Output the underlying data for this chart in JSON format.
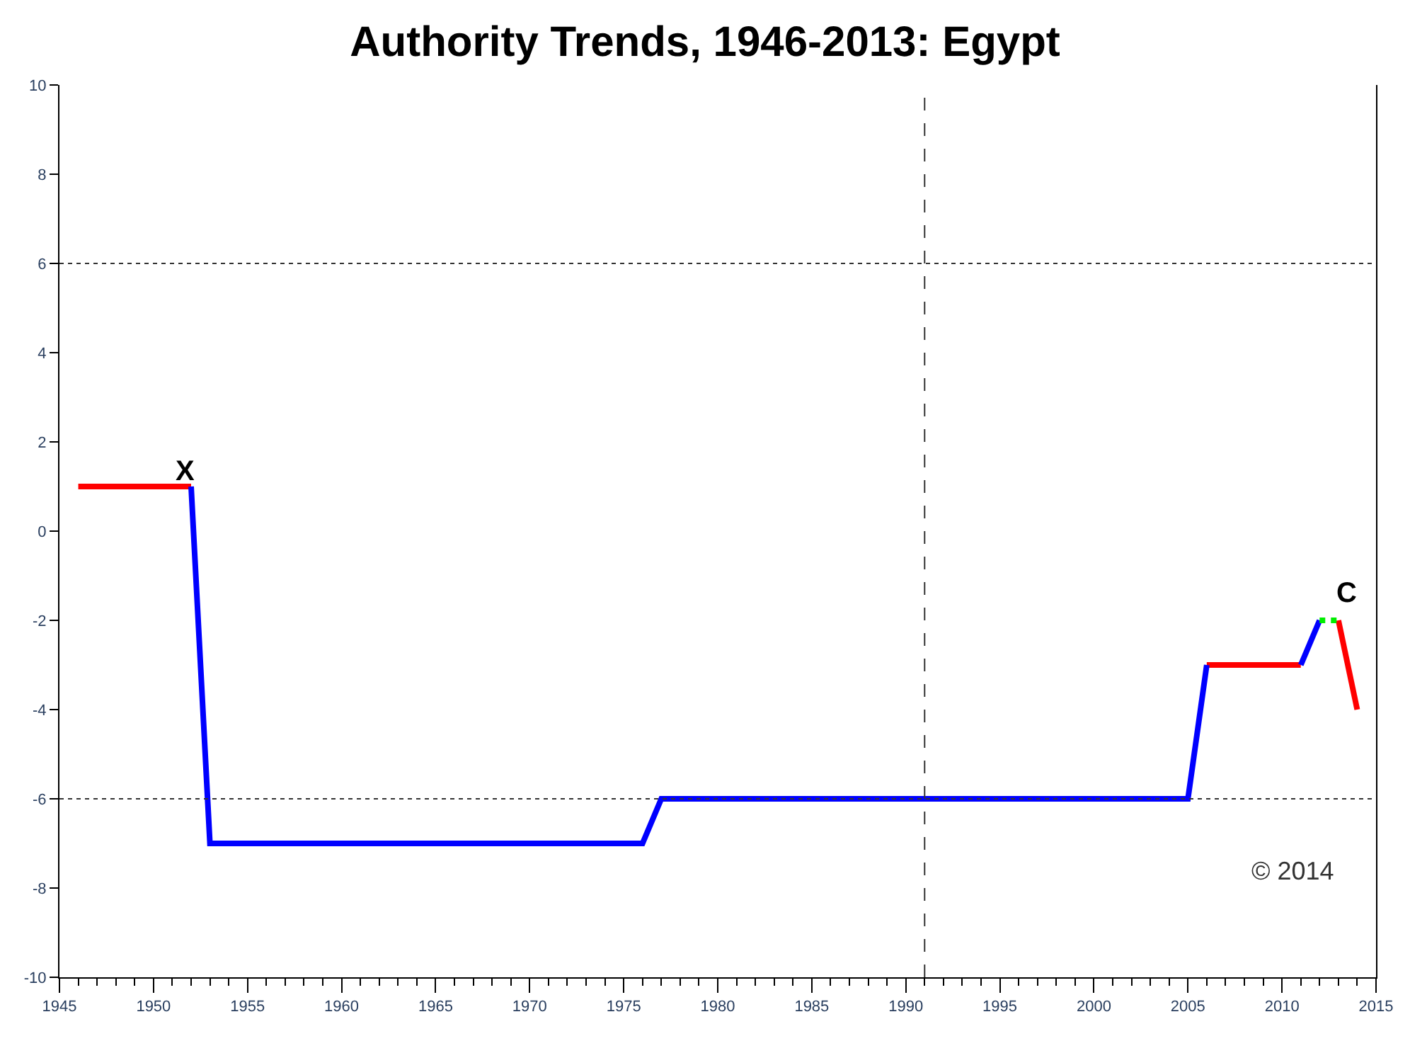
{
  "chart_data": {
    "type": "line",
    "title": "Authority Trends, 1946-2013: Egypt",
    "series": [
      {
        "color": "#ff0000",
        "x": [
          1946,
          1952,
          null,
          2006,
          2011,
          null,
          2013,
          2014
        ],
        "values": [
          1,
          1,
          null,
          -3,
          -3,
          null,
          -2,
          -4
        ]
      },
      {
        "color": "#0000ff",
        "x": [
          1952,
          1953,
          1976,
          1977,
          2005,
          2006,
          null,
          2011,
          2012
        ],
        "values": [
          1,
          -7,
          -7,
          -6,
          -6,
          -3,
          null,
          -3,
          -2
        ]
      },
      {
        "color": "#00ee00",
        "x": [
          2012,
          2013
        ],
        "values": [
          -2,
          -2
        ],
        "line_style": "dotted"
      }
    ],
    "xlim": [
      1945,
      2015
    ],
    "xticks": [
      1945,
      1950,
      1955,
      1960,
      1965,
      1970,
      1975,
      1980,
      1985,
      1990,
      1995,
      2000,
      2005,
      2010,
      2015
    ],
    "ylim": [
      -10,
      10
    ],
    "yticks": [
      -10,
      -8,
      -6,
      -4,
      -2,
      0,
      2,
      4,
      6,
      8,
      10
    ],
    "ref_lines": [
      {
        "axis": "y",
        "value": 6,
        "line_style": "dotted"
      },
      {
        "axis": "y",
        "value": -6,
        "line_style": "dotted"
      },
      {
        "axis": "x",
        "value": 1991,
        "line_style": "dashed"
      }
    ],
    "annotations": [
      {
        "text": "X",
        "x": 1952,
        "y": 1
      },
      {
        "text": "C",
        "x": 2013,
        "y": -2
      },
      "© 2014"
    ],
    "line_style": "solid",
    "marker": "none"
  }
}
